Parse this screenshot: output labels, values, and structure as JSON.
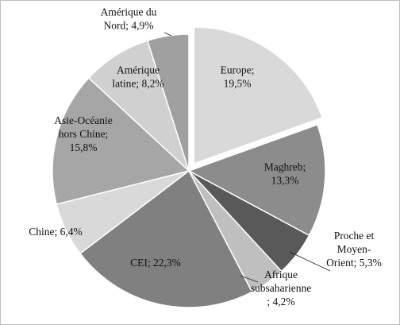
{
  "chart_data": {
    "type": "pie",
    "title": "",
    "legend": "none",
    "slices": [
      {
        "label": "Europe",
        "value": 19.5,
        "value_label": "19,5%",
        "color": "#d9d9d9",
        "exploded": true
      },
      {
        "label": "Maghreb",
        "value": 13.3,
        "value_label": "13,3%",
        "color": "#8c8c8c"
      },
      {
        "label": "Proche et Moyen-Orient",
        "value": 5.3,
        "value_label": "5,3%",
        "color": "#595959"
      },
      {
        "label": "Afrique subsaharienne",
        "value": 4.2,
        "value_label": "4,2%",
        "color": "#bfbfbf"
      },
      {
        "label": "CEI",
        "value": 22.3,
        "value_label": "22,3%",
        "color": "#808080"
      },
      {
        "label": "Chine",
        "value": 6.4,
        "value_label": "6,4%",
        "color": "#d9d9d9"
      },
      {
        "label": "Asie-Océanie hors Chine",
        "value": 15.8,
        "value_label": "15,8%",
        "color": "#a6a6a6"
      },
      {
        "label": "Amérique latine",
        "value": 8.2,
        "value_label": "8,2%",
        "color": "#d0d0d0"
      },
      {
        "label": "Amérique du Nord",
        "value": 4.9,
        "value_label": "4,9%",
        "color": "#a0a0a0"
      }
    ]
  }
}
